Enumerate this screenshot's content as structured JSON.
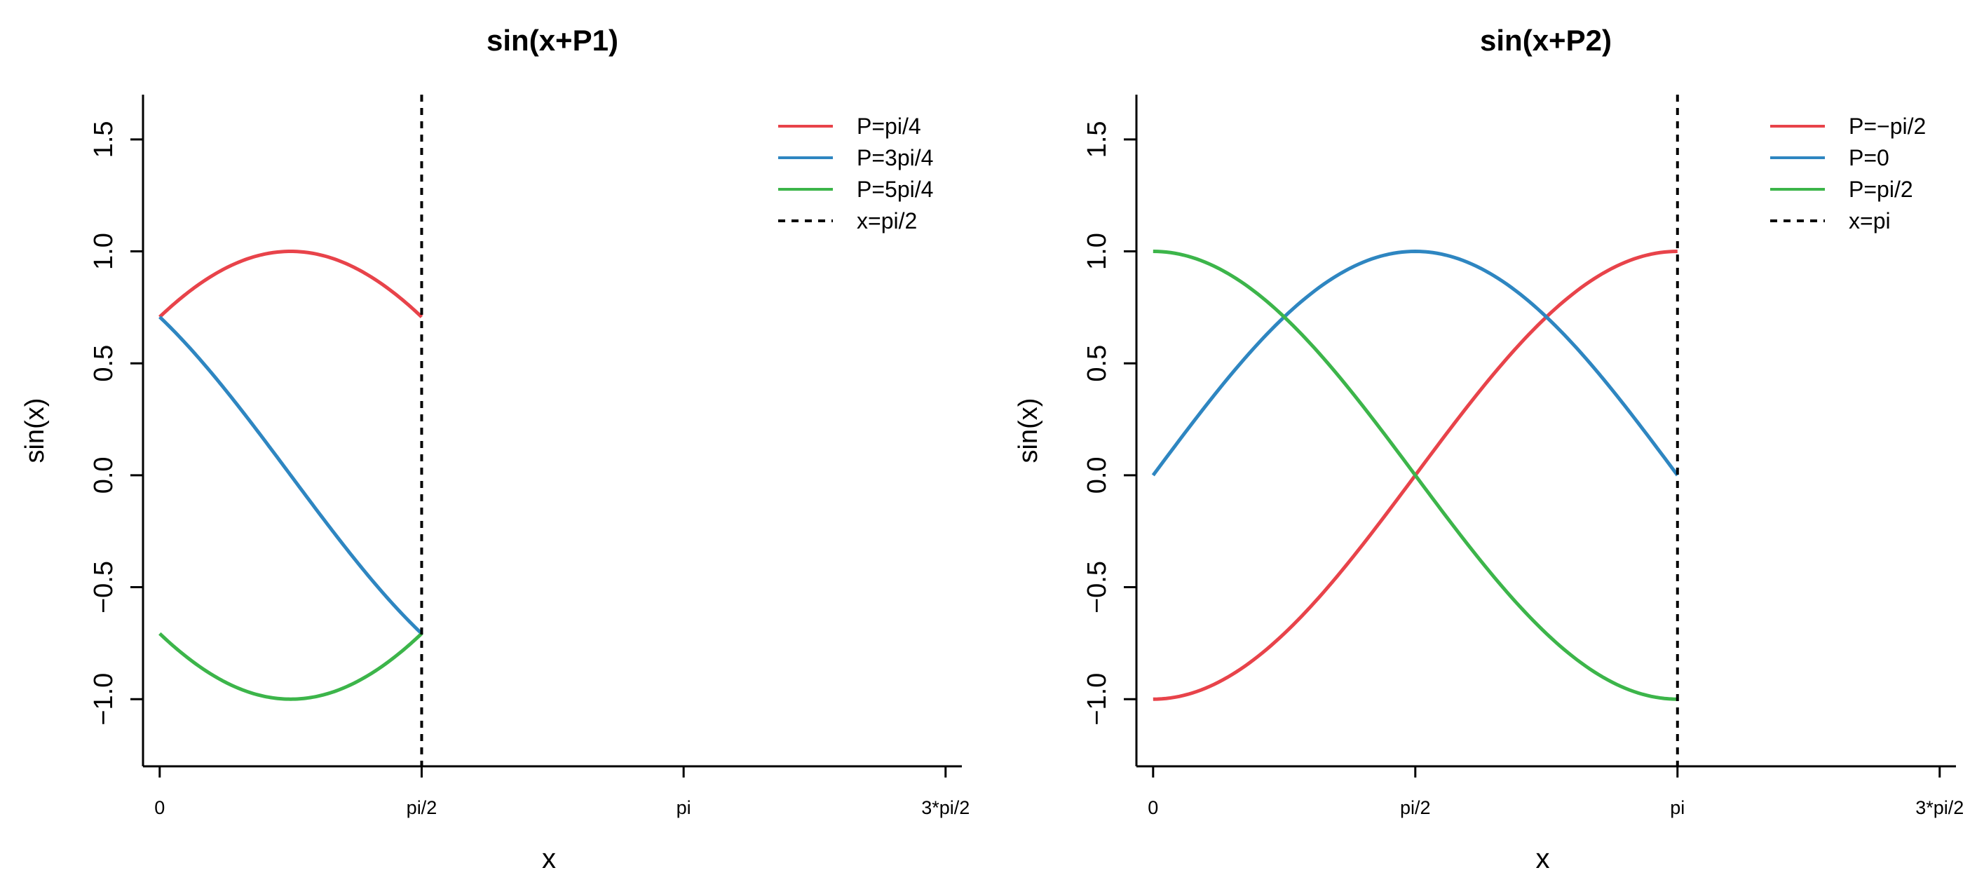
{
  "chart_data": [
    {
      "type": "line",
      "title": "sin(x+P1)",
      "xlabel": "x",
      "ylabel": "sin(x)",
      "xlim": [
        -0.1,
        4.81
      ],
      "ylim": [
        -1.3,
        1.7
      ],
      "xticks": [
        0,
        1.5707963,
        3.1415927,
        4.712389
      ],
      "xtick_labels": [
        "0",
        "pi/2",
        "pi",
        "3*pi/2"
      ],
      "yticks": [
        -1.0,
        -0.5,
        0.0,
        0.5,
        1.0,
        1.5
      ],
      "ytick_labels": [
        "−1.0",
        "−0.5",
        "0.0",
        "0.5",
        "1.0",
        "1.5"
      ],
      "x_range": [
        0,
        1.5707963
      ],
      "series": [
        {
          "name": "P=pi/4",
          "phase": 0.7853982,
          "color": "#e8434a"
        },
        {
          "name": "P=3pi/4",
          "phase": 2.3561945,
          "color": "#2e86c1"
        },
        {
          "name": "P=5pi/4",
          "phase": 3.9269908,
          "color": "#3cb54a"
        }
      ],
      "vline": {
        "name": "x=pi/2",
        "x": 1.5707963,
        "color": "#000000"
      },
      "legend_position": "top-right"
    },
    {
      "type": "line",
      "title": "sin(x+P2)",
      "xlabel": "x",
      "ylabel": "sin(x)",
      "xlim": [
        -0.1,
        4.81
      ],
      "ylim": [
        -1.3,
        1.7
      ],
      "xticks": [
        0,
        1.5707963,
        3.1415927,
        4.712389
      ],
      "xtick_labels": [
        "0",
        "pi/2",
        "pi",
        "3*pi/2"
      ],
      "yticks": [
        -1.0,
        -0.5,
        0.0,
        0.5,
        1.0,
        1.5
      ],
      "ytick_labels": [
        "−1.0",
        "−0.5",
        "0.0",
        "0.5",
        "1.0",
        "1.5"
      ],
      "x_range": [
        0,
        3.1415927
      ],
      "series": [
        {
          "name": "P=−pi/2",
          "phase": -1.5707963,
          "color": "#e8434a"
        },
        {
          "name": "P=0",
          "phase": 0,
          "color": "#2e86c1"
        },
        {
          "name": "P=pi/2",
          "phase": 1.5707963,
          "color": "#3cb54a"
        }
      ],
      "vline": {
        "name": "x=pi",
        "x": 3.1415927,
        "color": "#000000"
      },
      "legend_position": "top-right"
    }
  ]
}
